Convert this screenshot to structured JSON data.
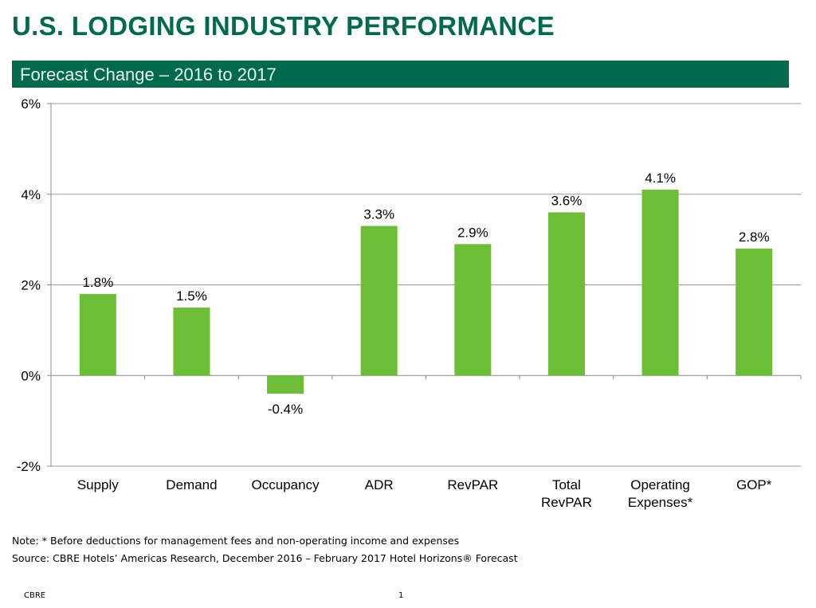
{
  "title": "U.S. LODGING INDUSTRY PERFORMANCE",
  "chart_data": {
    "type": "bar",
    "title": "Forecast Change – 2016 to 2017",
    "categories": [
      [
        "Supply"
      ],
      [
        "Demand"
      ],
      [
        "Occupancy"
      ],
      [
        "ADR"
      ],
      [
        "RevPAR"
      ],
      [
        "Total",
        "RevPAR"
      ],
      [
        "Operating",
        "Expenses*"
      ],
      [
        "GOP*"
      ]
    ],
    "values": [
      1.8,
      1.5,
      -0.4,
      3.3,
      2.9,
      3.6,
      4.1,
      2.8
    ],
    "data_labels": [
      "1.8%",
      "1.5%",
      "-0.4%",
      "3.3%",
      "2.9%",
      "3.6%",
      "4.1%",
      "2.8%"
    ],
    "ylim": [
      -2,
      6
    ],
    "yticks": [
      6,
      4,
      2,
      0,
      -2
    ],
    "ytick_labels": [
      "6%",
      "4%",
      "2%",
      "0%",
      "-2%"
    ],
    "grid": true,
    "bar_color": "#6cbe36",
    "xlabel": "",
    "ylabel": ""
  },
  "notes": {
    "note": "Note: * Before deductions for management fees and non-operating  income and expenses",
    "source": "Source: CBRE Hotels’ Americas Research, December 2016 – February 2017 Hotel Horizons® Forecast"
  },
  "footer": {
    "company": "CBRE",
    "page": "1"
  }
}
